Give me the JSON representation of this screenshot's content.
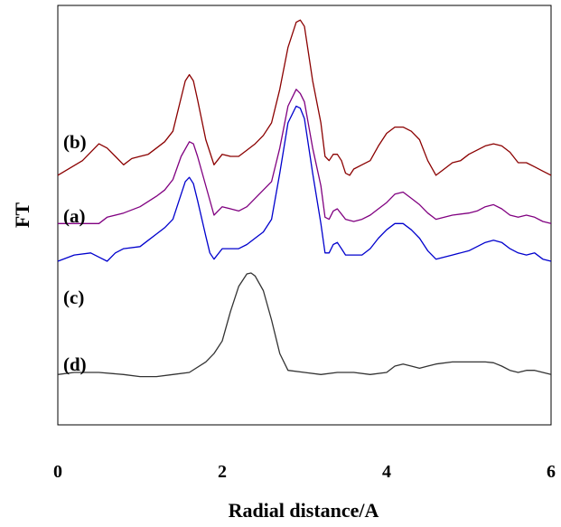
{
  "chart_data": {
    "type": "line",
    "title": "",
    "xlabel": "Radial distance/A",
    "ylabel": "FT",
    "xlim": [
      0,
      6
    ],
    "ylim": [
      0,
      1
    ],
    "xticks": [
      "0",
      "2",
      "4",
      "6"
    ],
    "yticks": [],
    "grid": false,
    "legend": "none",
    "series": [
      {
        "name": "(b)",
        "color": "#8B0000",
        "points": [
          [
            0,
            0.595
          ],
          [
            0.3,
            0.63
          ],
          [
            0.5,
            0.67
          ],
          [
            0.6,
            0.66
          ],
          [
            0.7,
            0.64
          ],
          [
            0.8,
            0.62
          ],
          [
            0.9,
            0.635
          ],
          [
            1.0,
            0.64
          ],
          [
            1.1,
            0.645
          ],
          [
            1.2,
            0.66
          ],
          [
            1.3,
            0.675
          ],
          [
            1.4,
            0.7
          ],
          [
            1.5,
            0.78
          ],
          [
            1.55,
            0.82
          ],
          [
            1.6,
            0.835
          ],
          [
            1.65,
            0.82
          ],
          [
            1.7,
            0.775
          ],
          [
            1.8,
            0.68
          ],
          [
            1.9,
            0.62
          ],
          [
            2.0,
            0.645
          ],
          [
            2.1,
            0.64
          ],
          [
            2.2,
            0.64
          ],
          [
            2.3,
            0.655
          ],
          [
            2.4,
            0.67
          ],
          [
            2.5,
            0.69
          ],
          [
            2.6,
            0.72
          ],
          [
            2.7,
            0.8
          ],
          [
            2.8,
            0.9
          ],
          [
            2.9,
            0.96
          ],
          [
            2.95,
            0.965
          ],
          [
            3.0,
            0.95
          ],
          [
            3.1,
            0.82
          ],
          [
            3.2,
            0.72
          ],
          [
            3.25,
            0.64
          ],
          [
            3.3,
            0.63
          ],
          [
            3.35,
            0.645
          ],
          [
            3.4,
            0.645
          ],
          [
            3.45,
            0.63
          ],
          [
            3.5,
            0.6
          ],
          [
            3.55,
            0.595
          ],
          [
            3.6,
            0.61
          ],
          [
            3.7,
            0.62
          ],
          [
            3.8,
            0.63
          ],
          [
            3.9,
            0.665
          ],
          [
            4.0,
            0.695
          ],
          [
            4.1,
            0.71
          ],
          [
            4.2,
            0.71
          ],
          [
            4.3,
            0.7
          ],
          [
            4.4,
            0.68
          ],
          [
            4.5,
            0.63
          ],
          [
            4.6,
            0.595
          ],
          [
            4.7,
            0.61
          ],
          [
            4.8,
            0.625
          ],
          [
            4.9,
            0.63
          ],
          [
            5.0,
            0.645
          ],
          [
            5.1,
            0.655
          ],
          [
            5.2,
            0.665
          ],
          [
            5.3,
            0.67
          ],
          [
            5.4,
            0.665
          ],
          [
            5.5,
            0.65
          ],
          [
            5.6,
            0.625
          ],
          [
            5.7,
            0.625
          ],
          [
            5.8,
            0.615
          ],
          [
            5.9,
            0.605
          ],
          [
            6.0,
            0.595
          ]
        ]
      },
      {
        "name": "(a)",
        "color": "#800080",
        "points": [
          [
            0,
            0.48
          ],
          [
            0.5,
            0.48
          ],
          [
            0.6,
            0.495
          ],
          [
            0.8,
            0.505
          ],
          [
            1.0,
            0.52
          ],
          [
            1.2,
            0.545
          ],
          [
            1.3,
            0.56
          ],
          [
            1.4,
            0.585
          ],
          [
            1.5,
            0.64
          ],
          [
            1.6,
            0.675
          ],
          [
            1.65,
            0.67
          ],
          [
            1.7,
            0.64
          ],
          [
            1.8,
            0.57
          ],
          [
            1.9,
            0.5
          ],
          [
            2.0,
            0.52
          ],
          [
            2.1,
            0.515
          ],
          [
            2.2,
            0.51
          ],
          [
            2.3,
            0.52
          ],
          [
            2.4,
            0.54
          ],
          [
            2.5,
            0.56
          ],
          [
            2.6,
            0.58
          ],
          [
            2.7,
            0.66
          ],
          [
            2.8,
            0.76
          ],
          [
            2.9,
            0.8
          ],
          [
            2.95,
            0.79
          ],
          [
            3.0,
            0.77
          ],
          [
            3.1,
            0.66
          ],
          [
            3.2,
            0.57
          ],
          [
            3.25,
            0.495
          ],
          [
            3.3,
            0.49
          ],
          [
            3.35,
            0.51
          ],
          [
            3.4,
            0.515
          ],
          [
            3.5,
            0.49
          ],
          [
            3.6,
            0.485
          ],
          [
            3.7,
            0.49
          ],
          [
            3.8,
            0.5
          ],
          [
            3.9,
            0.515
          ],
          [
            4.0,
            0.53
          ],
          [
            4.1,
            0.55
          ],
          [
            4.2,
            0.555
          ],
          [
            4.3,
            0.54
          ],
          [
            4.4,
            0.525
          ],
          [
            4.5,
            0.505
          ],
          [
            4.6,
            0.49
          ],
          [
            4.8,
            0.5
          ],
          [
            5.0,
            0.505
          ],
          [
            5.1,
            0.51
          ],
          [
            5.2,
            0.52
          ],
          [
            5.3,
            0.525
          ],
          [
            5.4,
            0.515
          ],
          [
            5.5,
            0.5
          ],
          [
            5.6,
            0.495
          ],
          [
            5.7,
            0.5
          ],
          [
            5.8,
            0.495
          ],
          [
            5.9,
            0.485
          ],
          [
            6.0,
            0.48
          ]
        ]
      },
      {
        "name": "(c)",
        "color": "#0000CD",
        "points": [
          [
            0,
            0.39
          ],
          [
            0.2,
            0.405
          ],
          [
            0.4,
            0.41
          ],
          [
            0.5,
            0.4
          ],
          [
            0.6,
            0.39
          ],
          [
            0.7,
            0.41
          ],
          [
            0.8,
            0.42
          ],
          [
            1.0,
            0.425
          ],
          [
            1.1,
            0.44
          ],
          [
            1.2,
            0.455
          ],
          [
            1.3,
            0.47
          ],
          [
            1.4,
            0.49
          ],
          [
            1.5,
            0.55
          ],
          [
            1.55,
            0.58
          ],
          [
            1.6,
            0.59
          ],
          [
            1.65,
            0.575
          ],
          [
            1.7,
            0.535
          ],
          [
            1.8,
            0.45
          ],
          [
            1.85,
            0.41
          ],
          [
            1.9,
            0.395
          ],
          [
            2.0,
            0.42
          ],
          [
            2.1,
            0.42
          ],
          [
            2.2,
            0.42
          ],
          [
            2.3,
            0.43
          ],
          [
            2.4,
            0.445
          ],
          [
            2.5,
            0.46
          ],
          [
            2.6,
            0.49
          ],
          [
            2.7,
            0.6
          ],
          [
            2.8,
            0.72
          ],
          [
            2.9,
            0.76
          ],
          [
            2.95,
            0.755
          ],
          [
            3.0,
            0.73
          ],
          [
            3.1,
            0.6
          ],
          [
            3.2,
            0.48
          ],
          [
            3.25,
            0.41
          ],
          [
            3.3,
            0.41
          ],
          [
            3.35,
            0.43
          ],
          [
            3.4,
            0.435
          ],
          [
            3.45,
            0.42
          ],
          [
            3.5,
            0.405
          ],
          [
            3.6,
            0.405
          ],
          [
            3.7,
            0.405
          ],
          [
            3.8,
            0.42
          ],
          [
            3.9,
            0.445
          ],
          [
            4.0,
            0.465
          ],
          [
            4.1,
            0.48
          ],
          [
            4.2,
            0.48
          ],
          [
            4.3,
            0.465
          ],
          [
            4.4,
            0.445
          ],
          [
            4.5,
            0.415
          ],
          [
            4.6,
            0.395
          ],
          [
            4.8,
            0.405
          ],
          [
            5.0,
            0.415
          ],
          [
            5.1,
            0.425
          ],
          [
            5.2,
            0.435
          ],
          [
            5.3,
            0.44
          ],
          [
            5.4,
            0.435
          ],
          [
            5.5,
            0.42
          ],
          [
            5.6,
            0.41
          ],
          [
            5.7,
            0.405
          ],
          [
            5.8,
            0.41
          ],
          [
            5.9,
            0.395
          ],
          [
            6.0,
            0.39
          ]
        ]
      },
      {
        "name": "(d)",
        "color": "#333333",
        "points": [
          [
            0,
            0.12
          ],
          [
            0.2,
            0.125
          ],
          [
            0.5,
            0.125
          ],
          [
            0.8,
            0.12
          ],
          [
            1.0,
            0.115
          ],
          [
            1.2,
            0.115
          ],
          [
            1.4,
            0.12
          ],
          [
            1.6,
            0.125
          ],
          [
            1.8,
            0.15
          ],
          [
            1.9,
            0.17
          ],
          [
            2.0,
            0.2
          ],
          [
            2.1,
            0.27
          ],
          [
            2.2,
            0.33
          ],
          [
            2.3,
            0.36
          ],
          [
            2.35,
            0.362
          ],
          [
            2.4,
            0.355
          ],
          [
            2.5,
            0.32
          ],
          [
            2.6,
            0.25
          ],
          [
            2.7,
            0.17
          ],
          [
            2.8,
            0.13
          ],
          [
            3.0,
            0.125
          ],
          [
            3.2,
            0.12
          ],
          [
            3.4,
            0.125
          ],
          [
            3.6,
            0.125
          ],
          [
            3.8,
            0.12
          ],
          [
            4.0,
            0.125
          ],
          [
            4.1,
            0.14
          ],
          [
            4.2,
            0.145
          ],
          [
            4.3,
            0.14
          ],
          [
            4.4,
            0.135
          ],
          [
            4.5,
            0.14
          ],
          [
            4.6,
            0.145
          ],
          [
            4.8,
            0.15
          ],
          [
            5.0,
            0.15
          ],
          [
            5.2,
            0.15
          ],
          [
            5.3,
            0.148
          ],
          [
            5.4,
            0.14
          ],
          [
            5.5,
            0.13
          ],
          [
            5.6,
            0.125
          ],
          [
            5.7,
            0.13
          ],
          [
            5.8,
            0.13
          ],
          [
            5.9,
            0.125
          ],
          [
            6.0,
            0.12
          ]
        ]
      }
    ]
  }
}
